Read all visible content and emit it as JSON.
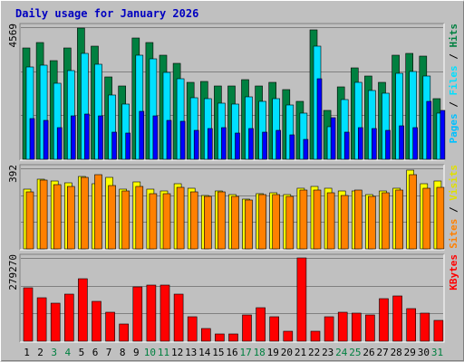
{
  "chart_data": {
    "type": "bar",
    "title": "Daily usage for January 2026",
    "categories": [
      "1",
      "2",
      "3",
      "4",
      "5",
      "6",
      "7",
      "8",
      "9",
      "10",
      "11",
      "12",
      "13",
      "14",
      "15",
      "16",
      "17",
      "18",
      "19",
      "20",
      "21",
      "22",
      "23",
      "24",
      "25",
      "26",
      "27",
      "28",
      "29",
      "30",
      "31"
    ],
    "weekend_days": [
      "3",
      "4",
      "10",
      "11",
      "17",
      "18",
      "24",
      "25",
      "31"
    ],
    "colors": {
      "hits": "#008040",
      "files": "#00e0ff",
      "pages": "#0000ff",
      "visits": "#ffff00",
      "sites": "#ff8000",
      "kbytes": "#ff0000",
      "weekday_label": "#000000",
      "weekend_label": "#008040",
      "title": "#0000c0"
    },
    "panels": [
      {
        "name": "hits-files-pages",
        "max_label": "4569",
        "ymax": 4569,
        "legend": [
          {
            "text": "Hits",
            "color": "#008040"
          },
          {
            "text": "Files",
            "color": "#00e0ff"
          },
          {
            "text": "Pages",
            "color": "#00c0ff"
          }
        ],
        "series": [
          {
            "name": "Hits",
            "color": "#008040",
            "values": [
              3850,
              4050,
              3400,
              3850,
              4550,
              3900,
              2850,
              2550,
              4200,
              4050,
              3600,
              3330,
              2670,
              2700,
              2520,
              2550,
              2750,
              2530,
              2660,
              2420,
              2000,
              4480,
              1700,
              2510,
              3170,
              2890,
              2670,
              3610,
              3670,
              3560,
              2090
            ]
          },
          {
            "name": "Files",
            "color": "#00e0ff",
            "values": [
              3180,
              3270,
              2620,
              3070,
              3670,
              3300,
              2230,
              1910,
              3600,
              3460,
              3000,
              2780,
              2120,
              2090,
              1950,
              1920,
              2150,
              1990,
              2090,
              1870,
              1600,
              3900,
              1120,
              2050,
              2670,
              2380,
              2270,
              2960,
              3020,
              2890,
              1590
            ]
          },
          {
            "name": "Pages",
            "color": "#0000ff",
            "values": [
              1400,
              1350,
              1100,
              1500,
              1550,
              1500,
              950,
              900,
              1650,
              1500,
              1350,
              1300,
              1000,
              1050,
              1100,
              900,
              1050,
              950,
              1000,
              850,
              700,
              2800,
              1450,
              950,
              1100,
              1050,
              1000,
              1150,
              1100,
              2000,
              1700
            ]
          }
        ]
      },
      {
        "name": "visits-sites",
        "max_label": "392",
        "ymax": 392,
        "legend": [
          {
            "text": "Visits",
            "color": "#e0e000"
          },
          {
            "text": "Sites",
            "color": "#ff8000"
          }
        ],
        "series": [
          {
            "name": "Visits",
            "color": "#ffff00",
            "values": [
              290,
              338,
              332,
              320,
              352,
              318,
              350,
              290,
              324,
              290,
              280,
              318,
              294,
              260,
              280,
              266,
              244,
              270,
              275,
              266,
              294,
              304,
              294,
              280,
              280,
              266,
              284,
              294,
              384,
              315,
              330
            ]
          },
          {
            "name": "Sites",
            "color": "#ff8000",
            "values": [
              278,
              334,
              314,
              304,
              348,
              360,
              310,
              284,
              304,
              270,
              268,
              300,
              276,
              254,
              276,
              256,
              236,
              266,
              266,
              254,
              288,
              288,
              274,
              260,
              285,
              256,
              275,
              286,
              360,
              294,
              300
            ]
          }
        ]
      },
      {
        "name": "kbytes",
        "max_label": "279270",
        "ymax": 279270,
        "legend": [
          {
            "text": "KBytes",
            "color": "#ff0000"
          }
        ],
        "series": [
          {
            "name": "KBytes",
            "color": "#ff0000",
            "values": [
              178000,
              147000,
              128000,
              157000,
              209000,
              134000,
              98000,
              59000,
              183000,
              188000,
              188000,
              157000,
              83000,
              44000,
              25000,
              25000,
              88000,
              113000,
              83000,
              34000,
              279270,
              34000,
              83000,
              98000,
              93000,
              88000,
              143000,
              152000,
              108000,
              93000,
              69000
            ]
          }
        ]
      }
    ]
  }
}
